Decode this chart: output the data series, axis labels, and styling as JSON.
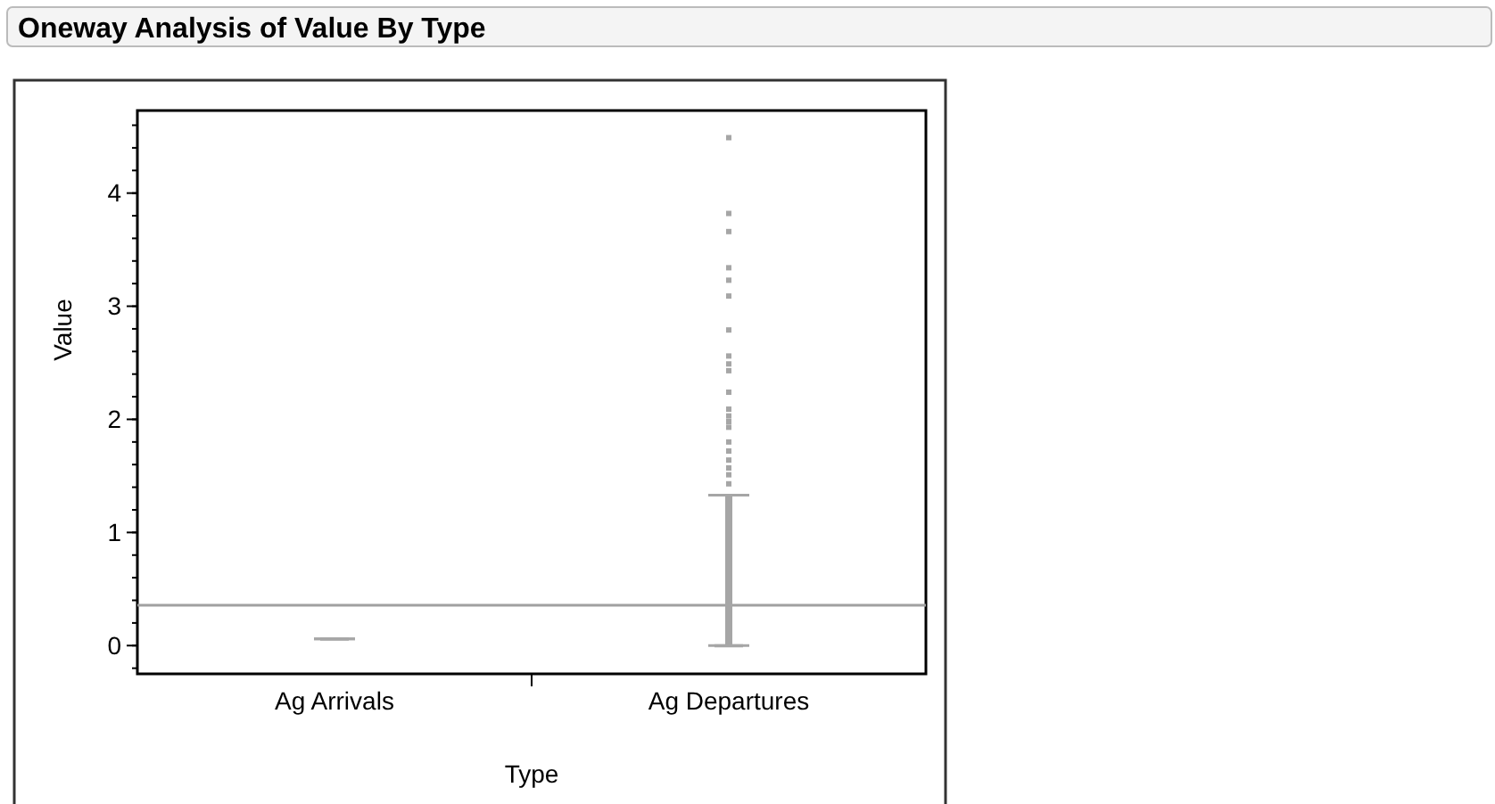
{
  "chart_data": {
    "type": "box",
    "title": "Oneway Analysis of Value By Type",
    "xlabel": "Type",
    "ylabel": "Value",
    "categories": [
      "Ag Arrivals",
      "Ag Departures"
    ],
    "boxes": [
      {
        "low": 0.06,
        "q1": 0.06,
        "median": 0.06,
        "q3": 0.06,
        "high": 0.06
      },
      {
        "low": 0,
        "q1": 0,
        "median": 0,
        "q3": 0,
        "high": 1.33,
        "outliers": [
          1.43,
          1.51,
          1.57,
          1.64,
          1.72,
          1.8,
          1.93,
          1.98,
          2.03,
          2.09,
          2.24,
          2.43,
          2.49,
          2.56,
          2.79,
          3.09,
          3.23,
          3.34,
          3.66,
          3.82,
          4.49
        ]
      }
    ],
    "color": "#a6a6a6",
    "ref_lines": [
      {
        "axis": "y",
        "value": 0.357,
        "color": "#a0a0a0"
      }
    ],
    "ylim": [
      -0.25,
      4.73
    ],
    "yticks": [
      0,
      1,
      2,
      3,
      4
    ],
    "grid": false
  }
}
